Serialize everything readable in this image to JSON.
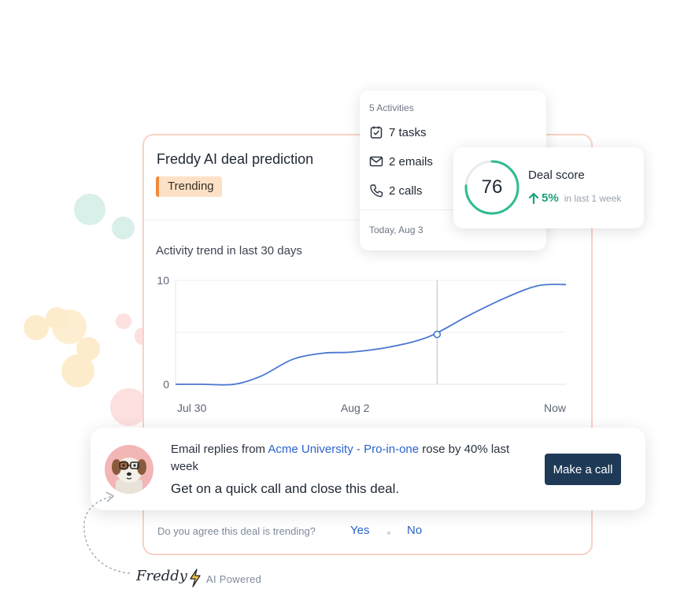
{
  "colors": {
    "accent_link": "#2a63c9",
    "trending_badge": "#fde1c7",
    "trending_bar": "#f08a3c",
    "score_ring": "#2dbb92",
    "score_change": "#1aa37a",
    "call_button": "#1e3a56",
    "card_border": "#f8d2c4",
    "chart_line": "#4a78d0"
  },
  "deal_card": {
    "title": "Freddy AI deal prediction",
    "badge": "Trending",
    "chart_title": "Activity trend in last 30 days",
    "feedback_question": "Do you agree this deal is trending?",
    "yes_label": "Yes",
    "no_label": "No"
  },
  "chart_data": {
    "type": "line",
    "title": "Activity trend in last 30 days",
    "x_tick_labels": [
      "Jul 30",
      "Aug 2",
      "Now"
    ],
    "y_tick_labels": [
      "0",
      "10"
    ],
    "ylim": [
      0,
      10
    ],
    "grid": true,
    "x": [
      0,
      0.07,
      0.15,
      0.22,
      0.3,
      0.38,
      0.45,
      0.55,
      0.65,
      0.75,
      0.85,
      0.93,
      1.0
    ],
    "series": [
      {
        "values": [
          0,
          0,
          0,
          0.8,
          2.4,
          3.0,
          3.1,
          3.6,
          4.6,
          6.6,
          8.4,
          9.5,
          9.6
        ]
      }
    ],
    "marker_at_x": 0.67,
    "marker_value": 4.8
  },
  "activities": {
    "header": "5 Activities",
    "items": [
      {
        "icon": "task-checkbox-icon",
        "label": "7 tasks"
      },
      {
        "icon": "mail-icon",
        "label": "2 emails"
      },
      {
        "icon": "phone-icon",
        "label": "2 calls"
      }
    ],
    "date": "Today, Aug 3"
  },
  "deal_score": {
    "value": "76",
    "score": 76,
    "label": "Deal score",
    "change": "5%",
    "period": "in last 1 week"
  },
  "banner": {
    "text_prefix": "Email replies from ",
    "account": "Acme University",
    "separator": " - ",
    "product": "Pro-in-one",
    "text_suffix": " rose by 40% last week",
    "headline": "Get on a quick call and close this deal.",
    "button_label": "Make a call"
  },
  "branding": {
    "name": "Freddy",
    "tagline": "AI Powered"
  }
}
